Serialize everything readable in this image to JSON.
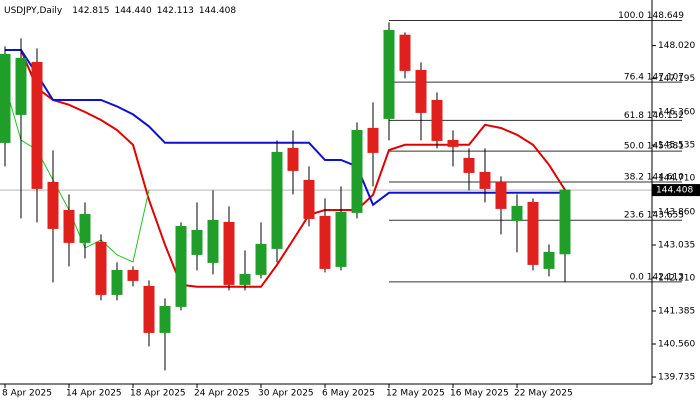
{
  "chart_data": {
    "type": "candlestick",
    "title": "USDJPY,Daily",
    "header_values": [
      142.815,
      {
        "value": 144.44,
        "label": "144.440"
      },
      142.113,
      144.408
    ],
    "categories": [
      "8 Apr 2025",
      null,
      null,
      null,
      "14 Apr 2025",
      null,
      null,
      null,
      "18 Apr 2025",
      null,
      null,
      null,
      "24 Apr 2025",
      null,
      null,
      null,
      "30 Apr 2025",
      null,
      null,
      null,
      "6 May 2025",
      null,
      null,
      null,
      "12 May 2025",
      null,
      null,
      null,
      "16 May 2025",
      null,
      null,
      null,
      "22 May 2025",
      null,
      null,
      null
    ],
    "open": [
      145.6,
      146.3,
      147.6,
      144.6,
      143.9,
      143.1,
      143.1,
      141.8,
      142.4,
      142.0,
      140.85,
      141.5,
      142.8,
      142.6,
      143.6,
      142.05,
      142.3,
      142.95,
      145.45,
      144.65,
      143.75,
      142.5,
      143.85,
      145.95,
      146.2,
      148.28,
      147.4,
      146.65,
      145.65,
      145.2,
      144.85,
      144.6,
      143.65,
      144.1,
      142.45,
      142.815
    ],
    "high": [
      148.0,
      148.2,
      147.95,
      145.4,
      144.3,
      144.1,
      143.3,
      142.6,
      142.5,
      142.15,
      141.7,
      143.6,
      144.1,
      144.4,
      144.0,
      142.9,
      143.6,
      145.65,
      145.9,
      145.0,
      144.2,
      144.5,
      146.1,
      146.6,
      148.6,
      148.35,
      147.6,
      146.85,
      145.9,
      145.45,
      145.45,
      144.75,
      144.3,
      144.2,
      143.05,
      144.44
    ],
    "low": [
      145.0,
      143.7,
      143.6,
      142.1,
      142.5,
      142.7,
      141.65,
      141.65,
      142.0,
      140.5,
      139.9,
      141.4,
      142.4,
      142.3,
      141.9,
      141.9,
      142.2,
      142.6,
      144.3,
      143.5,
      142.35,
      142.4,
      143.7,
      144.5,
      145.65,
      147.2,
      145.65,
      145.45,
      145.0,
      144.4,
      144.1,
      143.3,
      142.85,
      142.4,
      142.25,
      142.113
    ],
    "close": [
      147.8,
      147.7,
      144.45,
      143.45,
      143.1,
      143.8,
      141.8,
      142.4,
      142.15,
      140.85,
      141.5,
      143.5,
      143.4,
      143.65,
      142.05,
      142.3,
      143.05,
      145.35,
      144.9,
      143.7,
      142.45,
      143.85,
      145.9,
      145.35,
      148.4,
      147.4,
      146.35,
      145.65,
      145.5,
      144.85,
      144.45,
      143.95,
      144.0,
      142.55,
      142.85,
      144.408
    ],
    "up_color": "#1f9e2a",
    "down_color": "#e0201c",
    "series": [
      {
        "color": "#e00000",
        "values": [
          147.91,
          147.91,
          146.96,
          146.66,
          146.54,
          146.36,
          146.16,
          145.91,
          145.54,
          144.16,
          143.04,
          142.04,
          141.99,
          141.99,
          141.99,
          141.99,
          141.99,
          142.54,
          143.16,
          143.79,
          143.91,
          143.91,
          143.91,
          144.29,
          145.41,
          145.54,
          145.54,
          145.54,
          145.54,
          145.54,
          146.04,
          145.96,
          145.79,
          145.54,
          145.04,
          144.41
        ]
      },
      {
        "color": "#1010d0",
        "values": [
          147.91,
          147.91,
          147.3,
          146.66,
          146.66,
          146.66,
          146.66,
          146.5,
          146.3,
          146.0,
          145.59,
          145.59,
          145.59,
          145.59,
          145.59,
          145.59,
          145.59,
          145.59,
          145.59,
          145.59,
          145.16,
          145.16,
          145.0,
          144.04,
          144.34,
          144.34,
          144.34,
          144.34,
          144.34,
          144.34,
          144.34,
          144.34,
          144.34,
          144.34,
          144.34,
          144.34
        ]
      },
      {
        "color": "#22c422",
        "values": [
          147.04,
          145.66,
          145.41,
          144.66,
          143.91,
          142.96,
          143.16,
          142.79,
          142.61,
          144.41,
          null,
          null,
          null,
          null,
          null,
          null,
          null,
          null,
          null,
          null,
          null,
          null,
          null,
          null,
          null,
          null,
          null,
          null,
          null,
          null,
          null,
          null,
          null,
          null,
          null,
          null
        ]
      }
    ],
    "fib_levels": [
      {
        "value": 148.649,
        "label": "100.0 148.649"
      },
      {
        "value": 147.107,
        "label": "76.4 147.107"
      },
      {
        "value": 146.152,
        "label": "61.8 146.152"
      },
      {
        "value": 145.381,
        "label": "50.0 145.381"
      },
      {
        "value": 144.61,
        "label": "38.2 144.610"
      },
      {
        "value": 143.655,
        "label": "23.6 143.655"
      },
      {
        "value": 142.113,
        "label": "0.0 142.113"
      }
    ],
    "last_price": 144.408,
    "ylim": [
      139.56,
      149.16
    ],
    "yticks": [
      {
        "value": 148.02,
        "label": "148.020"
      },
      147.195,
      {
        "value": 146.36,
        "label": "146.360"
      },
      145.535,
      {
        "value": 144.71,
        "label": "144.710"
      },
      {
        "value": 143.86,
        "label": "143.860"
      },
      143.035,
      {
        "value": 142.21,
        "label": "142.210"
      },
      141.385,
      {
        "value": 140.56,
        "label": "140.560"
      },
      139.735
    ]
  }
}
